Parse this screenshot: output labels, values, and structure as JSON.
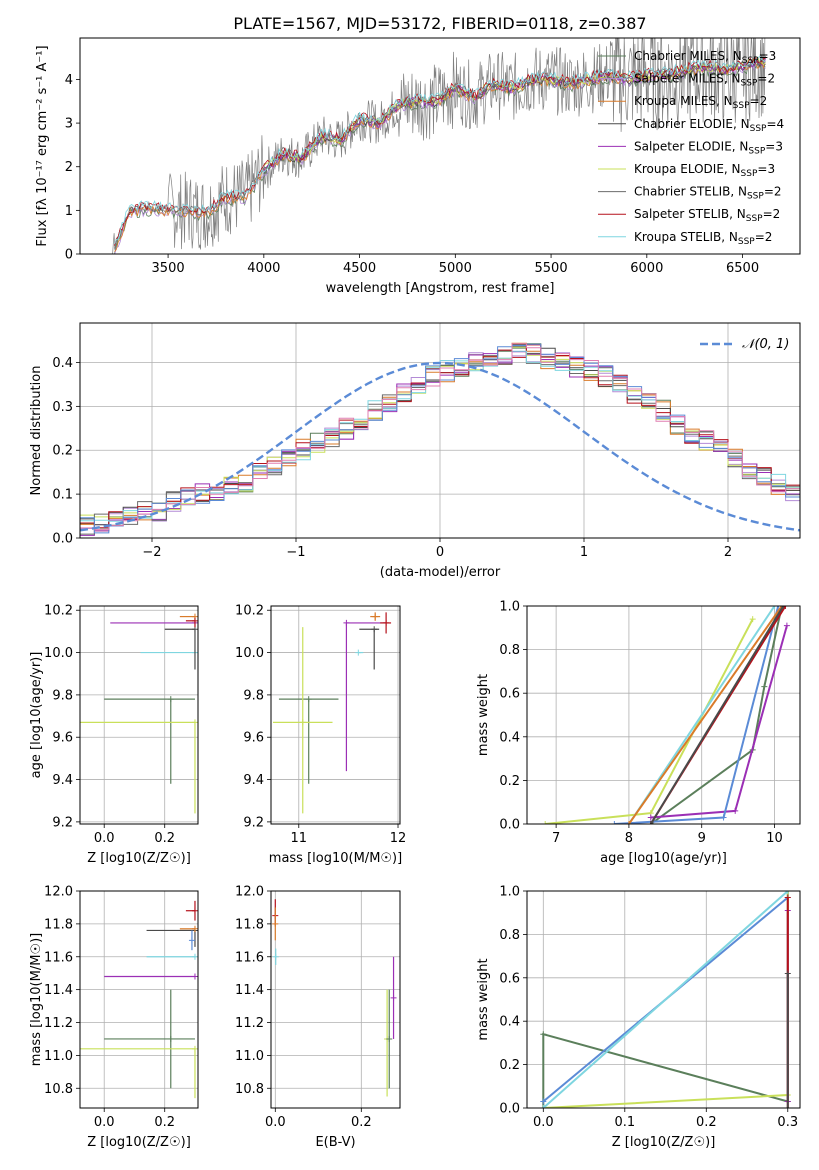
{
  "figure": {
    "title": "PLATE=1567, MJD=53172, FIBERID=0118, z=0.387"
  },
  "chart_data": [
    {
      "type": "line",
      "panel": "spectrum",
      "xlabel": "wavelength [Angstrom, rest frame]",
      "ylabel": "Flux [fλ 10⁻¹⁷ erg cm⁻² s⁻¹ A⁻¹]",
      "xlim": [
        3040,
        6800
      ],
      "ylim": [
        0,
        4.95
      ],
      "xticks": [
        3500,
        4000,
        4500,
        5000,
        5500,
        6000,
        6500
      ],
      "yticks": [
        0,
        1,
        2,
        3,
        4
      ],
      "legend_position": "top-right",
      "data_series": {
        "name": "",
        "color": "#808080",
        "x": [
          3210,
          3300,
          3400,
          3500,
          3600,
          3700,
          3800,
          3900,
          4000,
          4100,
          4200,
          4300,
          4400,
          4500,
          4600,
          4700,
          4800,
          4900,
          5000,
          5100,
          5200,
          5300,
          5400,
          5500,
          5600,
          5700,
          5800,
          5900,
          6000,
          6100,
          6200,
          6300,
          6400,
          6500,
          6600
        ],
        "y": [
          0.0,
          1.0,
          1.05,
          1.0,
          1.0,
          0.95,
          1.3,
          1.3,
          1.9,
          2.3,
          2.2,
          2.7,
          2.6,
          3.1,
          3.0,
          3.4,
          3.5,
          3.5,
          3.8,
          3.6,
          3.9,
          3.8,
          4.0,
          4.0,
          3.9,
          4.0,
          4.1,
          4.0,
          4.1,
          4.1,
          4.2,
          4.3,
          4.2,
          4.3,
          4.4
        ]
      },
      "models": [
        {
          "name": "Chabrier MILES, N_SSP=3",
          "color": "#5b7f5b"
        },
        {
          "name": "Salpeter MILES, N_SSP=2",
          "color": "#b38bd6"
        },
        {
          "name": "Kroupa MILES, N_SSP=2",
          "color": "#d97b2a"
        },
        {
          "name": "Chabrier ELODIE, N_SSP=4",
          "color": "#4a4a4a"
        },
        {
          "name": "Salpeter ELODIE, N_SSP=3",
          "color": "#9b2fb5"
        },
        {
          "name": "Kroupa ELODIE, N_SSP=3",
          "color": "#c9e05a"
        },
        {
          "name": "Chabrier STELIB, N_SSP=2",
          "color": "#6b6b6b"
        },
        {
          "name": "Salpeter STELIB, N_SSP=2",
          "color": "#b5111b"
        },
        {
          "name": "Kroupa STELIB, N_SSP=2",
          "color": "#7fd6e0"
        }
      ],
      "legend_labels": [
        {
          "name": "Chabrier MILES, N",
          "sub": "SSP",
          "rest": "=3"
        },
        {
          "name": "Salpeter MILES, N",
          "sub": "SSP",
          "rest": "=2"
        },
        {
          "name": "Kroupa MILES, N",
          "sub": "SSP",
          "rest": "=2"
        },
        {
          "name": "Chabrier ELODIE, N",
          "sub": "SSP",
          "rest": "=4"
        },
        {
          "name": "Salpeter ELODIE, N",
          "sub": "SSP",
          "rest": "=3"
        },
        {
          "name": "Kroupa ELODIE, N",
          "sub": "SSP",
          "rest": "=3"
        },
        {
          "name": "Chabrier STELIB, N",
          "sub": "SSP",
          "rest": "=2"
        },
        {
          "name": "Salpeter STELIB, N",
          "sub": "SSP",
          "rest": "=2"
        },
        {
          "name": "Kroupa STELIB, N",
          "sub": "SSP",
          "rest": "=2"
        }
      ]
    },
    {
      "type": "line",
      "panel": "residual-histogram",
      "xlabel": "(data-model)/error",
      "ylabel": "Normed distribution",
      "xlim": [
        -2.5,
        2.5
      ],
      "ylim": [
        0,
        0.49
      ],
      "xticks": [
        -2,
        -1,
        0,
        1,
        2
      ],
      "yticks": [
        0.0,
        0.1,
        0.2,
        0.3,
        0.4
      ],
      "grid": true,
      "legend_position": "top-right",
      "legend": "𝒩(0, 1)",
      "gaussian": {
        "name": "N(0,1)",
        "mean": 0,
        "sigma": 1,
        "color": "#5b8bd6",
        "style": "dashed"
      },
      "bin_width": 0.1,
      "bin_start": -2.5,
      "histogram_envelope": [
        0.03,
        0.03,
        0.04,
        0.05,
        0.06,
        0.06,
        0.08,
        0.09,
        0.1,
        0.11,
        0.12,
        0.13,
        0.15,
        0.16,
        0.18,
        0.2,
        0.22,
        0.23,
        0.25,
        0.27,
        0.29,
        0.31,
        0.33,
        0.35,
        0.37,
        0.38,
        0.39,
        0.4,
        0.41,
        0.42,
        0.43,
        0.42,
        0.41,
        0.4,
        0.39,
        0.38,
        0.37,
        0.35,
        0.33,
        0.31,
        0.29,
        0.26,
        0.24,
        0.22,
        0.2,
        0.18,
        0.16,
        0.14,
        0.12,
        0.1
      ]
    },
    {
      "type": "scatter",
      "panel": "age-vs-Z",
      "xlabel": "Z [log10(Z/Z☉)]",
      "ylabel": "age [log10(age/yr)]",
      "xlim": [
        -0.08,
        0.31
      ],
      "ylim": [
        9.19,
        10.22
      ],
      "xticks": [
        0.0,
        0.2
      ],
      "yticks": [
        9.2,
        9.4,
        9.6,
        9.8,
        10.0,
        10.2
      ],
      "grid": true,
      "points": [
        {
          "x": 0.22,
          "y": 9.78,
          "xerr": [
            0.22,
            0.08
          ],
          "yerr": [
            0.4,
            0.0
          ],
          "color": "#5b7f5b"
        },
        {
          "x": 0.3,
          "y": 9.67,
          "xerr": [
            0.4,
            0.0
          ],
          "yerr": [
            0.43,
            0.0
          ],
          "color": "#c9e05a"
        },
        {
          "x": 0.3,
          "y": 10.0,
          "xerr": [
            0.18,
            0.0
          ],
          "yerr": [
            0.0,
            0.0
          ],
          "color": "#7fd6e0"
        },
        {
          "x": 0.3,
          "y": 10.14,
          "xerr": [
            0.28,
            0.0
          ],
          "yerr": [
            0.0,
            0.0
          ],
          "color": "#9b2fb5"
        },
        {
          "x": 0.3,
          "y": 10.11,
          "xerr": [
            0.1,
            0.0
          ],
          "yerr": [
            0.19,
            0.0
          ],
          "color": "#4a4a4a"
        },
        {
          "x": 0.3,
          "y": 10.17,
          "xerr": [
            0.05,
            0.0
          ],
          "yerr": [
            0.02,
            0.0
          ],
          "color": "#d97b2a"
        },
        {
          "x": 0.3,
          "y": 10.15,
          "xerr": [
            0.03,
            0.0
          ],
          "yerr": [
            0.03,
            0.0
          ],
          "color": "#b5111b"
        }
      ]
    },
    {
      "type": "scatter",
      "panel": "age-vs-mass",
      "xlabel": "mass [log10(M/M☉)]",
      "ylabel": "",
      "xlim": [
        10.72,
        12.02
      ],
      "ylim": [
        9.19,
        10.22
      ],
      "xticks": [
        11,
        12
      ],
      "yticks": [
        9.2,
        9.4,
        9.6,
        9.8,
        10.0,
        10.2
      ],
      "grid": true,
      "points": [
        {
          "x": 11.1,
          "y": 9.78,
          "xerr": [
            0.3,
            0.3
          ],
          "yerr": [
            0.4,
            0.0
          ],
          "color": "#5b7f5b"
        },
        {
          "x": 11.04,
          "y": 9.67,
          "xerr": [
            0.3,
            0.3
          ],
          "yerr": [
            0.43,
            0.45
          ],
          "color": "#c9e05a"
        },
        {
          "x": 11.48,
          "y": 10.14,
          "xerr": [
            0.0,
            0.4
          ],
          "yerr": [
            0.7,
            0.0
          ],
          "color": "#9b2fb5"
        },
        {
          "x": 11.76,
          "y": 10.11,
          "xerr": [
            0.15,
            0.05
          ],
          "yerr": [
            0.19,
            0.0
          ],
          "color": "#4a4a4a"
        },
        {
          "x": 11.6,
          "y": 10.0,
          "xerr": [
            0.0,
            0.05
          ],
          "yerr": [
            0.0,
            0.0
          ],
          "color": "#7fd6e0"
        },
        {
          "x": 11.88,
          "y": 10.14,
          "xerr": [
            0.06,
            0.05
          ],
          "yerr": [
            0.05,
            0.05
          ],
          "color": "#b5111b"
        },
        {
          "x": 11.77,
          "y": 10.17,
          "xerr": [
            0.05,
            0.05
          ],
          "yerr": [
            0.02,
            0.02
          ],
          "color": "#d97b2a"
        }
      ]
    },
    {
      "type": "line",
      "panel": "mass-weight-vs-age",
      "xlabel": "age  [log10(age/yr)]",
      "ylabel": "mass weight",
      "xlim": [
        6.6,
        10.35
      ],
      "ylim": [
        0,
        1.0
      ],
      "xticks": [
        7,
        8,
        9,
        10
      ],
      "yticks": [
        0.0,
        0.2,
        0.4,
        0.6,
        0.8,
        1.0
      ],
      "grid": true,
      "series": [
        {
          "name": "Chabrier MILES",
          "color": "#5b7f5b",
          "x": [
            8.3,
            9.7,
            9.86,
            10.1
          ],
          "y": [
            0.0,
            0.34,
            0.63,
            1.0
          ]
        },
        {
          "name": "Kroupa ELODIE",
          "color": "#c9e05a",
          "x": [
            6.85,
            8.3,
            9.7
          ],
          "y": [
            0.0,
            0.05,
            0.94
          ]
        },
        {
          "name": "Salpeter ELODIE",
          "color": "#9b2fb5",
          "x": [
            8.3,
            9.46,
            10.17
          ],
          "y": [
            0.03,
            0.06,
            0.91
          ]
        },
        {
          "name": "Kroupa MILES",
          "color": "#5b8bd6",
          "x": [
            7.8,
            9.3,
            10.05
          ],
          "y": [
            0.0,
            0.03,
            1.0
          ]
        },
        {
          "name": "Kroupa STELIB",
          "color": "#7fd6e0",
          "x": [
            8.0,
            10.0
          ],
          "y": [
            0.0,
            1.0
          ]
        },
        {
          "name": "Chabrier ELODIE",
          "color": "#d97b2a",
          "x": [
            8.0,
            10.1
          ],
          "y": [
            0.0,
            1.0
          ]
        },
        {
          "name": "Salpeter STELIB",
          "color": "#b5111b",
          "x": [
            8.3,
            10.15
          ],
          "y": [
            0.0,
            1.0
          ]
        },
        {
          "name": "Chabrier STELIB",
          "color": "#4a4a4a",
          "x": [
            8.3,
            10.12
          ],
          "y": [
            0.0,
            1.0
          ]
        }
      ]
    },
    {
      "type": "scatter",
      "panel": "mass-vs-Z",
      "xlabel": "Z [log10(Z/Z☉)]",
      "ylabel": "mass [log10(M/M☉)]",
      "xlim": [
        -0.08,
        0.31
      ],
      "ylim": [
        10.68,
        12.0
      ],
      "xticks": [
        0.0,
        0.2
      ],
      "yticks": [
        10.8,
        11.0,
        11.2,
        11.4,
        11.6,
        11.8,
        12.0
      ],
      "grid": true,
      "points": [
        {
          "x": 0.22,
          "y": 11.1,
          "xerr": [
            0.22,
            0.08
          ],
          "yerr": [
            0.3,
            0.3
          ],
          "color": "#5b7f5b"
        },
        {
          "x": 0.3,
          "y": 11.04,
          "xerr": [
            0.4,
            0.0
          ],
          "yerr": [
            0.3,
            0.0
          ],
          "color": "#c9e05a"
        },
        {
          "x": 0.3,
          "y": 11.48,
          "xerr": [
            0.3,
            0.0
          ],
          "yerr": [
            0.0,
            0.0
          ],
          "color": "#9b2fb5"
        },
        {
          "x": 0.3,
          "y": 11.6,
          "xerr": [
            0.16,
            0.0
          ],
          "yerr": [
            0.0,
            0.0
          ],
          "color": "#7fd6e0"
        },
        {
          "x": 0.3,
          "y": 11.76,
          "xerr": [
            0.16,
            0.0
          ],
          "yerr": [
            0.1,
            0.0
          ],
          "color": "#4a4a4a"
        },
        {
          "x": 0.3,
          "y": 11.77,
          "xerr": [
            0.05,
            0.0
          ],
          "yerr": [
            0.02,
            0.0
          ],
          "color": "#d97b2a"
        },
        {
          "x": 0.3,
          "y": 11.88,
          "xerr": [
            0.03,
            0.0
          ],
          "yerr": [
            0.06,
            0.06
          ],
          "color": "#b5111b"
        },
        {
          "x": 0.29,
          "y": 11.7,
          "xerr": [
            0.0,
            0.0
          ],
          "yerr": [
            0.06,
            0.06
          ],
          "color": "#5b8bd6"
        }
      ]
    },
    {
      "type": "scatter",
      "panel": "mass-vs-EBV",
      "xlabel": "E(B-V)",
      "ylabel": "",
      "xlim": [
        -0.01,
        0.29
      ],
      "ylim": [
        10.68,
        12.0
      ],
      "xticks": [
        0.0,
        0.2
      ],
      "yticks": [
        10.8,
        11.0,
        11.2,
        11.4,
        11.6,
        11.8,
        12.0
      ],
      "grid": true,
      "points": [
        {
          "x": 0.0,
          "y": 11.85,
          "yerr": [
            0.06,
            0.1
          ],
          "color": "#b5111b"
        },
        {
          "x": 0.0,
          "y": 11.8,
          "yerr": [
            0.1,
            0.1
          ],
          "color": "#d97b2a"
        },
        {
          "x": 0.001,
          "y": 11.6,
          "yerr": [
            0.05,
            0.05
          ],
          "color": "#7fd6e0"
        },
        {
          "x": 0.26,
          "y": 11.1,
          "yerr": [
            0.35,
            0.3
          ],
          "color": "#c9e05a"
        },
        {
          "x": 0.265,
          "y": 11.1,
          "yerr": [
            0.3,
            0.3
          ],
          "color": "#5b7f5b"
        },
        {
          "x": 0.275,
          "y": 11.35,
          "yerr": [
            0.25,
            0.25
          ],
          "color": "#9b2fb5"
        }
      ]
    },
    {
      "type": "line",
      "panel": "mass-weight-vs-Z",
      "xlabel": "Z [log10(Z/Z☉)]",
      "ylabel": "mass weight",
      "xlim": [
        -0.02,
        0.315
      ],
      "ylim": [
        0,
        1.0
      ],
      "xticks": [
        0.0,
        0.1,
        0.2,
        0.3
      ],
      "yticks": [
        0.0,
        0.2,
        0.4,
        0.6,
        0.8,
        1.0
      ],
      "grid": true,
      "series": [
        {
          "name": "Chabrier MILES",
          "color": "#5b7f5b",
          "x": [
            0.0,
            0.0,
            0.3,
            0.3
          ],
          "y": [
            0.0,
            0.34,
            0.03,
            1.0
          ]
        },
        {
          "name": "Kroupa ELODIE",
          "color": "#c9e05a",
          "x": [
            0.0,
            0.3,
            0.3
          ],
          "y": [
            0.0,
            0.06,
            1.0
          ]
        },
        {
          "name": "Kroupa MILES",
          "color": "#5b8bd6",
          "x": [
            0.0,
            0.3
          ],
          "y": [
            0.03,
            0.97
          ]
        },
        {
          "name": "Kroupa STELIB",
          "color": "#7fd6e0",
          "x": [
            0.0,
            0.3
          ],
          "y": [
            0.0,
            1.0
          ]
        },
        {
          "name": "Salpeter ELODIE",
          "color": "#9b2fb5",
          "x": [
            0.3,
            0.3
          ],
          "y": [
            0.03,
            0.91
          ]
        },
        {
          "name": "Salpeter STELIB",
          "color": "#b5111b",
          "x": [
            0.3,
            0.3
          ],
          "y": [
            0.0,
            0.97
          ]
        },
        {
          "name": "Chabrier STELIB",
          "color": "#4a4a4a",
          "x": [
            0.3,
            0.3
          ],
          "y": [
            0.0,
            0.62
          ]
        }
      ]
    }
  ]
}
